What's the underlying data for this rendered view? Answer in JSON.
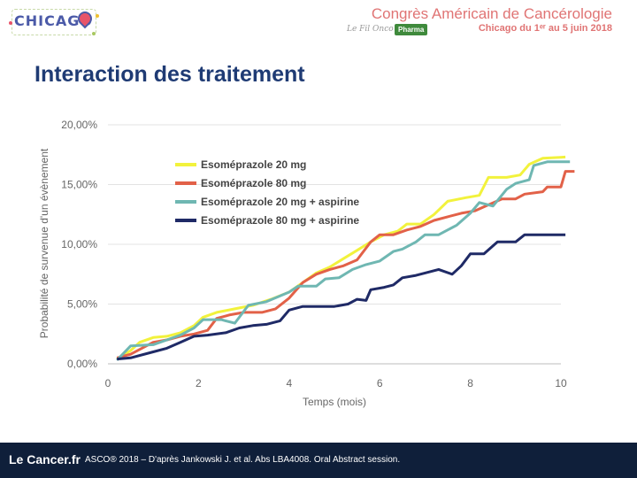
{
  "header": {
    "logo_text": "CHICAGO",
    "congress_title": "Congrès Américain de Cancérologie",
    "congress_subtitle": "Chicago du 1ᵉʳ au 5 juin 2018",
    "fil_text": "Le Fil Onco",
    "pharma_badge": "Pharma"
  },
  "slide": {
    "title": "Interaction des traitement"
  },
  "footer": {
    "logo": "Le Cancer.fr",
    "citation": "ASCO® 2018 – D'après Jankowski J. et al. Abs LBA4008. Oral Abstract session."
  },
  "colors": {
    "title": "#1f3b74",
    "header_accent": "#e07474",
    "footer_bg": "#0f1f3a"
  },
  "chart_data": {
    "type": "line",
    "xlabel": "Temps (mois)",
    "ylabel": "Probabilité de survenue d'un évènement",
    "xlim": [
      0,
      10
    ],
    "ylim": [
      0,
      20
    ],
    "x_ticks": [
      "0",
      "2",
      "4",
      "6",
      "8",
      "10"
    ],
    "y_ticks": [
      "0,00%",
      "5,00%",
      "10,00%",
      "15,00%",
      "20,00%"
    ],
    "x_tick_values": [
      0,
      2,
      4,
      6,
      8,
      10
    ],
    "y_tick_values": [
      0,
      5,
      10,
      15,
      20
    ],
    "legend_position": "top-left inside",
    "series": [
      {
        "name": "Esoméprazole  20 mg",
        "color": "#f2f23c",
        "points": [
          [
            0.2,
            0.4
          ],
          [
            0.5,
            1.1
          ],
          [
            0.7,
            1.8
          ],
          [
            1.0,
            2.2
          ],
          [
            1.3,
            2.3
          ],
          [
            1.6,
            2.6
          ],
          [
            1.9,
            3.2
          ],
          [
            2.1,
            3.9
          ],
          [
            2.4,
            4.3
          ],
          [
            2.8,
            4.6
          ],
          [
            3.2,
            4.9
          ],
          [
            3.6,
            5.4
          ],
          [
            4.0,
            6.0
          ],
          [
            4.3,
            6.8
          ],
          [
            4.6,
            7.6
          ],
          [
            4.9,
            8.1
          ],
          [
            5.2,
            8.8
          ],
          [
            5.5,
            9.5
          ],
          [
            5.8,
            10.2
          ],
          [
            6.1,
            10.8
          ],
          [
            6.4,
            11.1
          ],
          [
            6.6,
            11.7
          ],
          [
            6.9,
            11.7
          ],
          [
            7.2,
            12.5
          ],
          [
            7.5,
            13.6
          ],
          [
            7.9,
            13.9
          ],
          [
            8.2,
            14.1
          ],
          [
            8.4,
            15.6
          ],
          [
            8.8,
            15.6
          ],
          [
            9.1,
            15.8
          ],
          [
            9.3,
            16.7
          ],
          [
            9.6,
            17.2
          ],
          [
            10.1,
            17.3
          ]
        ]
      },
      {
        "name": "Esoméprazole  80 mg",
        "color": "#e26148",
        "points": [
          [
            0.2,
            0.5
          ],
          [
            0.5,
            0.8
          ],
          [
            0.8,
            1.4
          ],
          [
            1.0,
            1.8
          ],
          [
            1.3,
            2.0
          ],
          [
            1.6,
            2.3
          ],
          [
            1.9,
            2.5
          ],
          [
            2.2,
            2.8
          ],
          [
            2.4,
            3.8
          ],
          [
            2.7,
            4.1
          ],
          [
            3.0,
            4.3
          ],
          [
            3.4,
            4.3
          ],
          [
            3.7,
            4.6
          ],
          [
            4.0,
            5.5
          ],
          [
            4.3,
            6.8
          ],
          [
            4.6,
            7.5
          ],
          [
            4.9,
            7.9
          ],
          [
            5.2,
            8.2
          ],
          [
            5.5,
            8.7
          ],
          [
            5.8,
            10.2
          ],
          [
            6.0,
            10.8
          ],
          [
            6.3,
            10.8
          ],
          [
            6.6,
            11.2
          ],
          [
            6.9,
            11.5
          ],
          [
            7.2,
            12.0
          ],
          [
            7.5,
            12.3
          ],
          [
            7.8,
            12.6
          ],
          [
            8.1,
            12.8
          ],
          [
            8.4,
            13.3
          ],
          [
            8.7,
            13.8
          ],
          [
            9.0,
            13.8
          ],
          [
            9.2,
            14.2
          ],
          [
            9.6,
            14.4
          ],
          [
            9.7,
            14.8
          ],
          [
            10.0,
            14.8
          ],
          [
            10.1,
            16.1
          ],
          [
            10.3,
            16.1
          ]
        ]
      },
      {
        "name": "Esoméprazole  20 mg + aspirine",
        "color": "#6fb7b2",
        "points": [
          [
            0.2,
            0.3
          ],
          [
            0.5,
            1.5
          ],
          [
            1.0,
            1.6
          ],
          [
            1.3,
            2.0
          ],
          [
            1.6,
            2.4
          ],
          [
            1.9,
            3.0
          ],
          [
            2.1,
            3.7
          ],
          [
            2.5,
            3.7
          ],
          [
            2.8,
            3.4
          ],
          [
            3.1,
            4.9
          ],
          [
            3.5,
            5.2
          ],
          [
            4.0,
            6.0
          ],
          [
            4.2,
            6.5
          ],
          [
            4.6,
            6.5
          ],
          [
            4.8,
            7.1
          ],
          [
            5.1,
            7.2
          ],
          [
            5.4,
            7.9
          ],
          [
            5.7,
            8.3
          ],
          [
            6.0,
            8.6
          ],
          [
            6.3,
            9.4
          ],
          [
            6.5,
            9.6
          ],
          [
            6.8,
            10.2
          ],
          [
            7.0,
            10.8
          ],
          [
            7.3,
            10.8
          ],
          [
            7.7,
            11.6
          ],
          [
            8.0,
            12.6
          ],
          [
            8.2,
            13.5
          ],
          [
            8.5,
            13.2
          ],
          [
            8.8,
            14.6
          ],
          [
            9.0,
            15.1
          ],
          [
            9.3,
            15.4
          ],
          [
            9.4,
            16.6
          ],
          [
            9.7,
            16.9
          ],
          [
            10.2,
            16.9
          ]
        ]
      },
      {
        "name": "Esoméprazole  80 mg + aspirine",
        "color": "#1f2a66",
        "points": [
          [
            0.2,
            0.4
          ],
          [
            0.5,
            0.5
          ],
          [
            1.0,
            1.0
          ],
          [
            1.3,
            1.3
          ],
          [
            1.6,
            1.8
          ],
          [
            1.9,
            2.3
          ],
          [
            2.2,
            2.4
          ],
          [
            2.6,
            2.6
          ],
          [
            2.9,
            3.0
          ],
          [
            3.2,
            3.2
          ],
          [
            3.5,
            3.3
          ],
          [
            3.8,
            3.6
          ],
          [
            4.0,
            4.5
          ],
          [
            4.3,
            4.8
          ],
          [
            4.6,
            4.8
          ],
          [
            5.0,
            4.8
          ],
          [
            5.3,
            5.0
          ],
          [
            5.5,
            5.4
          ],
          [
            5.7,
            5.3
          ],
          [
            5.8,
            6.2
          ],
          [
            6.1,
            6.4
          ],
          [
            6.3,
            6.6
          ],
          [
            6.5,
            7.2
          ],
          [
            6.8,
            7.4
          ],
          [
            7.0,
            7.6
          ],
          [
            7.3,
            7.9
          ],
          [
            7.6,
            7.5
          ],
          [
            7.8,
            8.2
          ],
          [
            8.0,
            9.2
          ],
          [
            8.3,
            9.2
          ],
          [
            8.6,
            10.2
          ],
          [
            9.0,
            10.2
          ],
          [
            9.2,
            10.8
          ],
          [
            9.6,
            10.8
          ],
          [
            10.1,
            10.8
          ]
        ]
      }
    ]
  }
}
